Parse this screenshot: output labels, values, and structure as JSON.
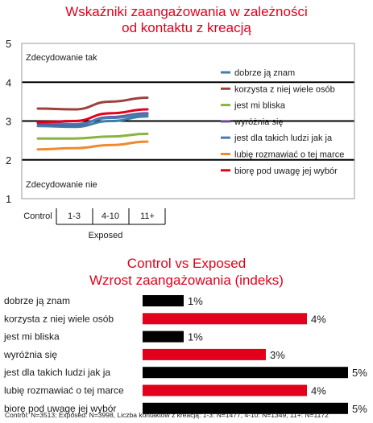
{
  "chart_data": [
    {
      "type": "line",
      "title": "Wskaźniki zaangażowania w zależności od kontaktu z kreacją",
      "title_lines": [
        "Wskaźniki zaangażowania w zależności",
        "od kontaktu z kreacją"
      ],
      "xlabel": "Exposed",
      "categories": [
        "Control",
        "1-3",
        "4-10",
        "11+"
      ],
      "ylim": [
        1,
        5
      ],
      "yticks": [
        1,
        2,
        3,
        4,
        5
      ],
      "grid": true,
      "legend": "right",
      "annotations": {
        "top": "Zdecydowanie tak",
        "bottom": "Zdecydowanie nie"
      },
      "series": [
        {
          "name": "dobrze ją znam",
          "color": "#3d7fa6",
          "values": [
            2.87,
            2.85,
            3.0,
            3.12
          ]
        },
        {
          "name": "korzysta z niej wiele osób",
          "color": "#a0403c",
          "values": [
            3.32,
            3.3,
            3.5,
            3.6
          ]
        },
        {
          "name": "jest mi bliska",
          "color": "#8bb33f",
          "values": [
            2.55,
            2.55,
            2.6,
            2.67
          ]
        },
        {
          "name": "wyróżnia się",
          "color": "#6a4c93",
          "values": [
            2.93,
            2.9,
            3.1,
            3.2
          ]
        },
        {
          "name": "jest dla takich ludzi jak ja",
          "color": "#4a79b5",
          "values": [
            2.97,
            2.92,
            3.08,
            3.17
          ]
        },
        {
          "name": "lubię rozmawiać o tej marce",
          "color": "#f08a2f",
          "values": [
            2.27,
            2.3,
            2.38,
            2.47
          ]
        },
        {
          "name": "biorę pod uwagę jej wybór",
          "color": "#e3001b",
          "values": [
            2.97,
            3.0,
            3.2,
            3.3
          ]
        }
      ]
    },
    {
      "type": "bar",
      "orientation": "horizontal",
      "title": "Control vs Exposed Wzrost zaangażowania (indeks)",
      "title_lines": [
        "Control vs Exposed",
        "Wzrost zaangażowania (indeks)"
      ],
      "categories": [
        "dobrze ją znam",
        "korzysta z niej wiele osób",
        "jest mi bliska",
        "wyróżnia się",
        "jest dla takich ludzi jak ja",
        "lubię rozmawiać o tej marce",
        "biorę pod uwagę jej wybór"
      ],
      "values": [
        1,
        4,
        1,
        3,
        5,
        4,
        5
      ],
      "value_labels": [
        "1%",
        "4%",
        "1%",
        "3%",
        "5%",
        "4%",
        "5%"
      ],
      "colors": [
        "#000000",
        "#e3001b",
        "#000000",
        "#e3001b",
        "#000000",
        "#e3001b",
        "#000000"
      ],
      "xlim": [
        0,
        5
      ]
    }
  ],
  "footnote": "Control: N=3513; Exposed: N=3998, Liczba kontaktów z kreacją: 1-3: N=1477, 4-10: N=1349, 11+: N=1172"
}
